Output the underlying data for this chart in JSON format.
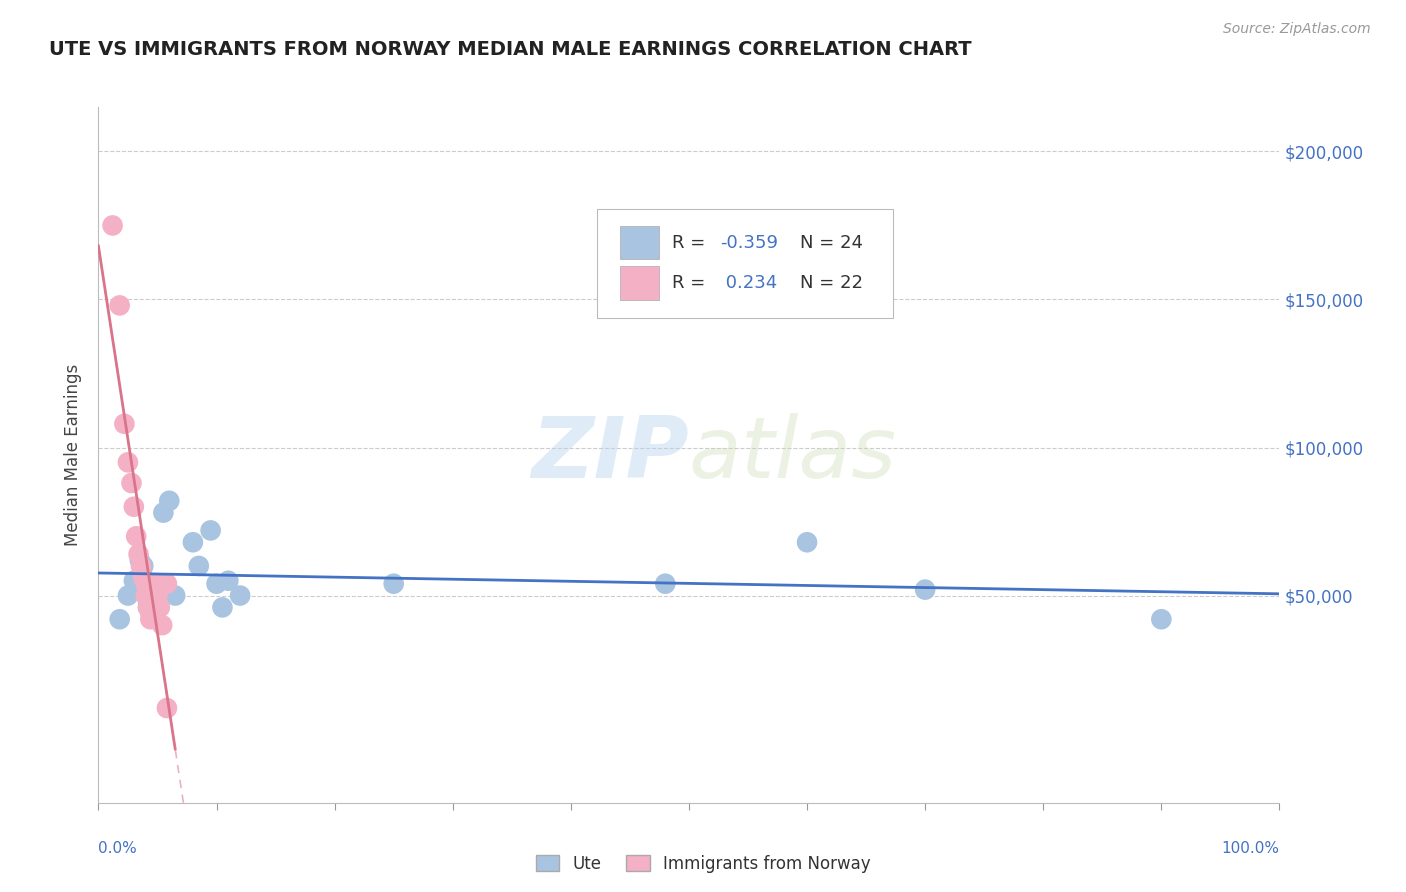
{
  "title": "UTE VS IMMIGRANTS FROM NORWAY MEDIAN MALE EARNINGS CORRELATION CHART",
  "source": "Source: ZipAtlas.com",
  "ylabel": "Median Male Earnings",
  "legend_label1": "Ute",
  "legend_label2": "Immigrants from Norway",
  "R_ute": -0.359,
  "N_ute": 24,
  "R_norway": 0.234,
  "N_norway": 22,
  "ylim": [
    -20000,
    215000
  ],
  "xlim": [
    0.0,
    1.0
  ],
  "watermark_zip": "ZIP",
  "watermark_atlas": "atlas",
  "blue_color": "#a8c4e0",
  "pink_color": "#f4b0c5",
  "blue_line_color": "#4472c4",
  "pink_line_color": "#d9748a",
  "background_color": "#ffffff",
  "grid_color": "#cccccc",
  "tick_label_color": "#4472c4",
  "blue_scatter": [
    [
      0.018,
      42000
    ],
    [
      0.025,
      50000
    ],
    [
      0.03,
      55000
    ],
    [
      0.035,
      62000
    ],
    [
      0.038,
      60000
    ],
    [
      0.04,
      52000
    ],
    [
      0.042,
      46000
    ],
    [
      0.048,
      54000
    ],
    [
      0.05,
      48000
    ],
    [
      0.055,
      78000
    ],
    [
      0.06,
      82000
    ],
    [
      0.065,
      50000
    ],
    [
      0.08,
      68000
    ],
    [
      0.085,
      60000
    ],
    [
      0.095,
      72000
    ],
    [
      0.1,
      54000
    ],
    [
      0.105,
      46000
    ],
    [
      0.11,
      55000
    ],
    [
      0.12,
      50000
    ],
    [
      0.25,
      54000
    ],
    [
      0.48,
      54000
    ],
    [
      0.6,
      68000
    ],
    [
      0.7,
      52000
    ],
    [
      0.9,
      42000
    ]
  ],
  "pink_scatter": [
    [
      0.012,
      175000
    ],
    [
      0.018,
      148000
    ],
    [
      0.022,
      108000
    ],
    [
      0.025,
      95000
    ],
    [
      0.028,
      88000
    ],
    [
      0.03,
      80000
    ],
    [
      0.032,
      70000
    ],
    [
      0.034,
      64000
    ],
    [
      0.036,
      60000
    ],
    [
      0.038,
      56000
    ],
    [
      0.04,
      54000
    ],
    [
      0.04,
      50000
    ],
    [
      0.042,
      48000
    ],
    [
      0.042,
      46000
    ],
    [
      0.044,
      44000
    ],
    [
      0.044,
      42000
    ],
    [
      0.048,
      54000
    ],
    [
      0.05,
      50000
    ],
    [
      0.052,
      46000
    ],
    [
      0.054,
      40000
    ],
    [
      0.058,
      54000
    ],
    [
      0.058,
      12000
    ]
  ],
  "xtick_positions": [
    0.0,
    0.1,
    0.2,
    0.3,
    0.4,
    0.5,
    0.6,
    0.7,
    0.8,
    0.9,
    1.0
  ],
  "ytick_positions": [
    0,
    50000,
    100000,
    150000,
    200000
  ]
}
